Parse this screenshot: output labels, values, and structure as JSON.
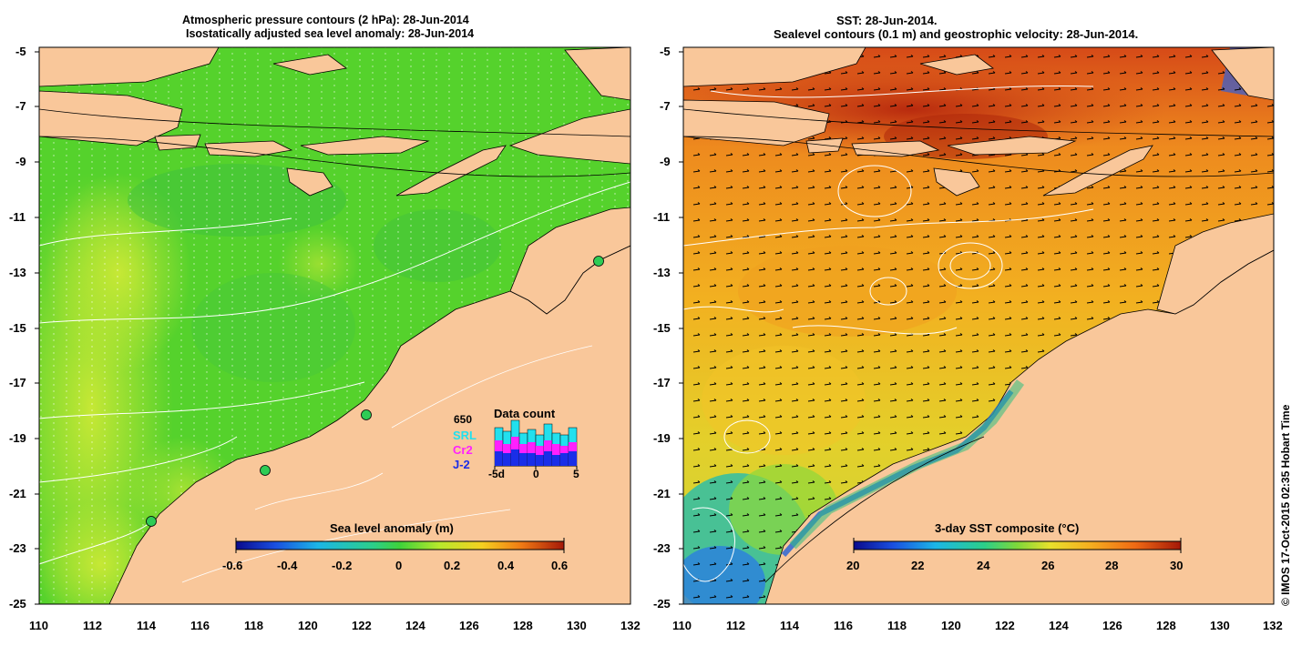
{
  "left_panel": {
    "title_line1": "Atmospheric pressure contours (2 hPa): 28-Jun-2014",
    "title_line2": "Isostatically adjusted sea level anomaly: 28-Jun-2014",
    "colorbar": {
      "label": "Sea level anomaly (m)",
      "ticks": [
        "-0.6",
        "-0.4",
        "-0.2",
        "0",
        "0.2",
        "0.4",
        "0.6"
      ]
    },
    "data_count": {
      "title": "Data count",
      "total": "650",
      "missions": [
        {
          "name": "SRL",
          "color": "#22e0ee"
        },
        {
          "name": "Cr2",
          "color": "#ff20ff"
        },
        {
          "name": "J-2",
          "color": "#1a2ee8"
        }
      ],
      "x_ticks": [
        "-5d",
        "0",
        "5"
      ]
    }
  },
  "right_panel": {
    "title_line1": "SST: 28-Jun-2014.",
    "title_line2": "Sealevel contours (0.1 m) and geostrophic velocity: 28-Jun-2014.",
    "colorbar": {
      "label": "3-day SST composite (°C)",
      "ticks": [
        "20",
        "22",
        "24",
        "26",
        "28",
        "30"
      ]
    }
  },
  "axes": {
    "y_ticks": [
      "-5",
      "-7",
      "-9",
      "-11",
      "-13",
      "-15",
      "-17",
      "-19",
      "-21",
      "-23",
      "-25"
    ],
    "x_ticks": [
      "110",
      "112",
      "114",
      "116",
      "118",
      "120",
      "122",
      "124",
      "126",
      "128",
      "130",
      "132"
    ]
  },
  "copyright": "© IMOS 17-Oct-2015 02:35 Hobart Time",
  "colors": {
    "land": "#f9c79a",
    "ocean_sla": "#5fd62a",
    "ocean_sst": "#f0a020",
    "sst_warm": "#c8320f",
    "sst_cool": "#33bb66"
  }
}
